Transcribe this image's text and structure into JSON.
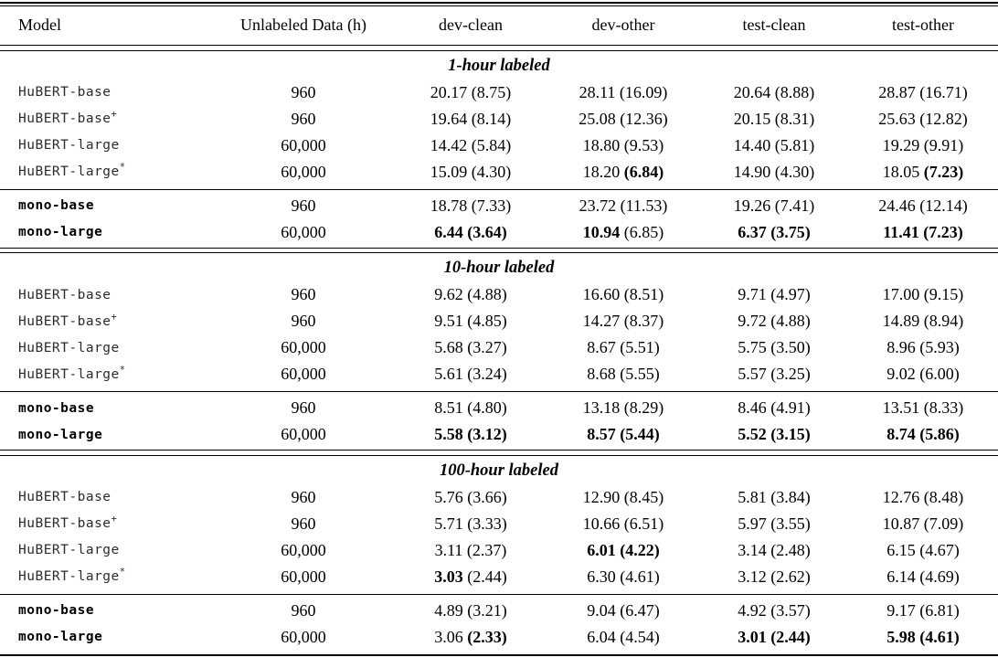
{
  "header": {
    "columns": [
      "Model",
      "Unlabeled Data (h)",
      "dev-clean",
      "dev-other",
      "test-clean",
      "test-other"
    ]
  },
  "sections": [
    {
      "label": "1-hour labeled",
      "groups": [
        {
          "rows": [
            {
              "model": "HuBERT-base",
              "sup": "",
              "bold_model": false,
              "unlabeled": "960",
              "cells": [
                {
                  "v": "20.17",
                  "b": false,
                  "p": "8.75",
                  "pb": false
                },
                {
                  "v": "28.11",
                  "b": false,
                  "p": "16.09",
                  "pb": false
                },
                {
                  "v": "20.64",
                  "b": false,
                  "p": "8.88",
                  "pb": false
                },
                {
                  "v": "28.87",
                  "b": false,
                  "p": "16.71",
                  "pb": false
                }
              ]
            },
            {
              "model": "HuBERT-base",
              "sup": "+",
              "bold_model": false,
              "unlabeled": "960",
              "cells": [
                {
                  "v": "19.64",
                  "b": false,
                  "p": "8.14",
                  "pb": false
                },
                {
                  "v": "25.08",
                  "b": false,
                  "p": "12.36",
                  "pb": false
                },
                {
                  "v": "20.15",
                  "b": false,
                  "p": "8.31",
                  "pb": false
                },
                {
                  "v": "25.63",
                  "b": false,
                  "p": "12.82",
                  "pb": false
                }
              ]
            },
            {
              "model": "HuBERT-large",
              "sup": "",
              "bold_model": false,
              "unlabeled": "60,000",
              "cells": [
                {
                  "v": "14.42",
                  "b": false,
                  "p": "5.84",
                  "pb": false
                },
                {
                  "v": "18.80",
                  "b": false,
                  "p": "9.53",
                  "pb": false
                },
                {
                  "v": "14.40",
                  "b": false,
                  "p": "5.81",
                  "pb": false
                },
                {
                  "v": "19.29",
                  "b": false,
                  "p": "9.91",
                  "pb": false
                }
              ]
            },
            {
              "model": "HuBERT-large",
              "sup": "*",
              "bold_model": false,
              "unlabeled": "60,000",
              "cells": [
                {
                  "v": "15.09",
                  "b": false,
                  "p": "4.30",
                  "pb": false
                },
                {
                  "v": "18.20",
                  "b": false,
                  "p": "6.84",
                  "pb": true
                },
                {
                  "v": "14.90",
                  "b": false,
                  "p": "4.30",
                  "pb": false
                },
                {
                  "v": "18.05",
                  "b": false,
                  "p": "7.23",
                  "pb": true
                }
              ]
            }
          ]
        },
        {
          "rows": [
            {
              "model": "mono-base",
              "sup": "",
              "bold_model": true,
              "unlabeled": "960",
              "cells": [
                {
                  "v": "18.78",
                  "b": false,
                  "p": "7.33",
                  "pb": false
                },
                {
                  "v": "23.72",
                  "b": false,
                  "p": "11.53",
                  "pb": false
                },
                {
                  "v": "19.26",
                  "b": false,
                  "p": "7.41",
                  "pb": false
                },
                {
                  "v": "24.46",
                  "b": false,
                  "p": "12.14",
                  "pb": false
                }
              ]
            },
            {
              "model": "mono-large",
              "sup": "",
              "bold_model": true,
              "unlabeled": "60,000",
              "cells": [
                {
                  "v": "6.44",
                  "b": true,
                  "p": "3.64",
                  "pb": true
                },
                {
                  "v": "10.94",
                  "b": true,
                  "p": "6.85",
                  "pb": false
                },
                {
                  "v": "6.37",
                  "b": true,
                  "p": "3.75",
                  "pb": true
                },
                {
                  "v": "11.41",
                  "b": true,
                  "p": "7.23",
                  "pb": true
                }
              ]
            }
          ]
        }
      ]
    },
    {
      "label": "10-hour labeled",
      "groups": [
        {
          "rows": [
            {
              "model": "HuBERT-base",
              "sup": "",
              "bold_model": false,
              "unlabeled": "960",
              "cells": [
                {
                  "v": "9.62",
                  "b": false,
                  "p": "4.88",
                  "pb": false
                },
                {
                  "v": "16.60",
                  "b": false,
                  "p": "8.51",
                  "pb": false
                },
                {
                  "v": "9.71",
                  "b": false,
                  "p": "4.97",
                  "pb": false
                },
                {
                  "v": "17.00",
                  "b": false,
                  "p": "9.15",
                  "pb": false
                }
              ]
            },
            {
              "model": "HuBERT-base",
              "sup": "+",
              "bold_model": false,
              "unlabeled": "960",
              "cells": [
                {
                  "v": "9.51",
                  "b": false,
                  "p": "4.85",
                  "pb": false
                },
                {
                  "v": "14.27",
                  "b": false,
                  "p": "8.37",
                  "pb": false
                },
                {
                  "v": "9.72",
                  "b": false,
                  "p": "4.88",
                  "pb": false
                },
                {
                  "v": "14.89",
                  "b": false,
                  "p": "8.94",
                  "pb": false
                }
              ]
            },
            {
              "model": "HuBERT-large",
              "sup": "",
              "bold_model": false,
              "unlabeled": "60,000",
              "cells": [
                {
                  "v": "5.68",
                  "b": false,
                  "p": "3.27",
                  "pb": false
                },
                {
                  "v": "8.67",
                  "b": false,
                  "p": "5.51",
                  "pb": false
                },
                {
                  "v": "5.75",
                  "b": false,
                  "p": "3.50",
                  "pb": false
                },
                {
                  "v": "8.96",
                  "b": false,
                  "p": "5.93",
                  "pb": false
                }
              ]
            },
            {
              "model": "HuBERT-large",
              "sup": "*",
              "bold_model": false,
              "unlabeled": "60,000",
              "cells": [
                {
                  "v": "5.61",
                  "b": false,
                  "p": "3.24",
                  "pb": false
                },
                {
                  "v": "8.68",
                  "b": false,
                  "p": "5.55",
                  "pb": false
                },
                {
                  "v": "5.57",
                  "b": false,
                  "p": "3.25",
                  "pb": false
                },
                {
                  "v": "9.02",
                  "b": false,
                  "p": "6.00",
                  "pb": false
                }
              ]
            }
          ]
        },
        {
          "rows": [
            {
              "model": "mono-base",
              "sup": "",
              "bold_model": true,
              "unlabeled": "960",
              "cells": [
                {
                  "v": "8.51",
                  "b": false,
                  "p": "4.80",
                  "pb": false
                },
                {
                  "v": "13.18",
                  "b": false,
                  "p": "8.29",
                  "pb": false
                },
                {
                  "v": "8.46",
                  "b": false,
                  "p": "4.91",
                  "pb": false
                },
                {
                  "v": "13.51",
                  "b": false,
                  "p": "8.33",
                  "pb": false
                }
              ]
            },
            {
              "model": "mono-large",
              "sup": "",
              "bold_model": true,
              "unlabeled": "60,000",
              "cells": [
                {
                  "v": "5.58",
                  "b": true,
                  "p": "3.12",
                  "pb": true
                },
                {
                  "v": "8.57",
                  "b": true,
                  "p": "5.44",
                  "pb": true
                },
                {
                  "v": "5.52",
                  "b": true,
                  "p": "3.15",
                  "pb": true
                },
                {
                  "v": "8.74",
                  "b": true,
                  "p": "5.86",
                  "pb": true
                }
              ]
            }
          ]
        }
      ]
    },
    {
      "label": "100-hour labeled",
      "groups": [
        {
          "rows": [
            {
              "model": "HuBERT-base",
              "sup": "",
              "bold_model": false,
              "unlabeled": "960",
              "cells": [
                {
                  "v": "5.76",
                  "b": false,
                  "p": "3.66",
                  "pb": false
                },
                {
                  "v": "12.90",
                  "b": false,
                  "p": "8.45",
                  "pb": false
                },
                {
                  "v": "5.81",
                  "b": false,
                  "p": "3.84",
                  "pb": false
                },
                {
                  "v": "12.76",
                  "b": false,
                  "p": "8.48",
                  "pb": false
                }
              ]
            },
            {
              "model": "HuBERT-base",
              "sup": "+",
              "bold_model": false,
              "unlabeled": "960",
              "cells": [
                {
                  "v": "5.71",
                  "b": false,
                  "p": "3.33",
                  "pb": false
                },
                {
                  "v": "10.66",
                  "b": false,
                  "p": "6.51",
                  "pb": false
                },
                {
                  "v": "5.97",
                  "b": false,
                  "p": "3.55",
                  "pb": false
                },
                {
                  "v": "10.87",
                  "b": false,
                  "p": "7.09",
                  "pb": false
                }
              ]
            },
            {
              "model": "HuBERT-large",
              "sup": "",
              "bold_model": false,
              "unlabeled": "60,000",
              "cells": [
                {
                  "v": "3.11",
                  "b": false,
                  "p": "2.37",
                  "pb": false
                },
                {
                  "v": "6.01",
                  "b": true,
                  "p": "4.22",
                  "pb": true
                },
                {
                  "v": "3.14",
                  "b": false,
                  "p": "2.48",
                  "pb": false
                },
                {
                  "v": "6.15",
                  "b": false,
                  "p": "4.67",
                  "pb": false
                }
              ]
            },
            {
              "model": "HuBERT-large",
              "sup": "*",
              "bold_model": false,
              "unlabeled": "60,000",
              "cells": [
                {
                  "v": "3.03",
                  "b": true,
                  "p": "2.44",
                  "pb": false
                },
                {
                  "v": "6.30",
                  "b": false,
                  "p": "4.61",
                  "pb": false
                },
                {
                  "v": "3.12",
                  "b": false,
                  "p": "2.62",
                  "pb": false
                },
                {
                  "v": "6.14",
                  "b": false,
                  "p": "4.69",
                  "pb": false
                }
              ]
            }
          ]
        },
        {
          "rows": [
            {
              "model": "mono-base",
              "sup": "",
              "bold_model": true,
              "unlabeled": "960",
              "cells": [
                {
                  "v": "4.89",
                  "b": false,
                  "p": "3.21",
                  "pb": false
                },
                {
                  "v": "9.04",
                  "b": false,
                  "p": "6.47",
                  "pb": false
                },
                {
                  "v": "4.92",
                  "b": false,
                  "p": "3.57",
                  "pb": false
                },
                {
                  "v": "9.17",
                  "b": false,
                  "p": "6.81",
                  "pb": false
                }
              ]
            },
            {
              "model": "mono-large",
              "sup": "",
              "bold_model": true,
              "unlabeled": "60,000",
              "cells": [
                {
                  "v": "3.06",
                  "b": false,
                  "p": "2.33",
                  "pb": true
                },
                {
                  "v": "6.04",
                  "b": false,
                  "p": "4.54",
                  "pb": false
                },
                {
                  "v": "3.01",
                  "b": true,
                  "p": "2.44",
                  "pb": true
                },
                {
                  "v": "5.98",
                  "b": true,
                  "p": "4.61",
                  "pb": true
                }
              ]
            }
          ]
        }
      ]
    }
  ]
}
